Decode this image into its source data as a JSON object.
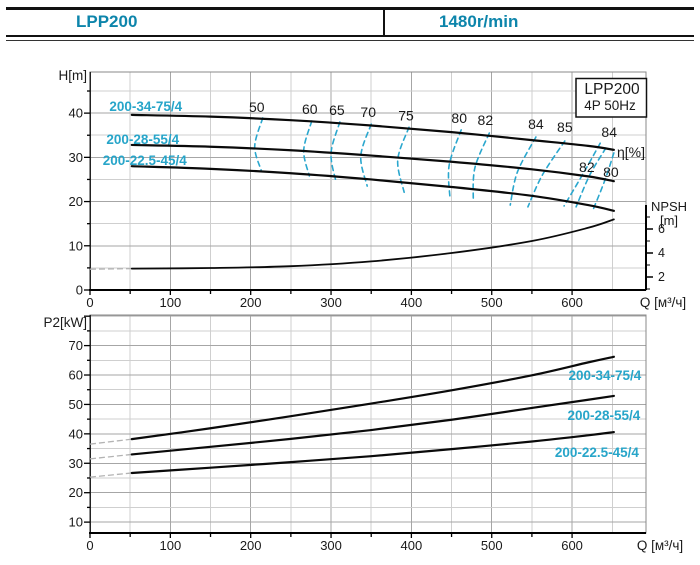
{
  "header": {
    "model": "LPP200",
    "speed": "1480r/min"
  },
  "colors": {
    "header_text": "#0d85ab",
    "series_label": "#27a5c9",
    "efficiency_line": "#2aa7ce",
    "curve": "#0a0a0a",
    "grid_minor": "#cfcfcf",
    "grid_major": "#a6a6a6",
    "border": "#888888",
    "axis": "#000000",
    "lead_in": "#b3b3b3",
    "tick_text": "#1a1a1a"
  },
  "chart_data": [
    {
      "id": "head-flow-chart",
      "type": "line",
      "title": "LPP200",
      "subtitle": "4P  50Hz",
      "xlabel": "Q [м³/ч]",
      "ylabel": "H[m]",
      "xlim": [
        0,
        692
      ],
      "ylim": [
        0,
        49.3
      ],
      "x_ticks": [
        0,
        100,
        200,
        300,
        400,
        500,
        600
      ],
      "y_ticks": [
        0,
        10,
        20,
        30,
        40
      ],
      "x_minor_step": 50,
      "y_minor_step": 5,
      "grid": true,
      "series": [
        {
          "name": "200-34-75/4",
          "points": [
            [
              52,
              39.6
            ],
            [
              150,
              39.2
            ],
            [
              250,
              38.4
            ],
            [
              350,
              37.2
            ],
            [
              450,
              35.7
            ],
            [
              550,
              33.9
            ],
            [
              620,
              32.6
            ],
            [
              652,
              31.7
            ]
          ],
          "label_offset": [
            14,
            -9
          ]
        },
        {
          "name": "200-28-55/4",
          "points": [
            [
              52,
              32.8
            ],
            [
              150,
              32.4
            ],
            [
              250,
              31.6
            ],
            [
              350,
              30.4
            ],
            [
              450,
              29.0
            ],
            [
              550,
              27.3
            ],
            [
              620,
              25.7
            ],
            [
              652,
              24.6
            ]
          ],
          "label_offset": [
            11,
            -6
          ]
        },
        {
          "name": "200-22.5-45/4",
          "points": [
            [
              52,
              28.0
            ],
            [
              150,
              27.4
            ],
            [
              250,
              26.4
            ],
            [
              350,
              25.0
            ],
            [
              450,
              23.3
            ],
            [
              550,
              21.3
            ],
            [
              620,
              19.2
            ],
            [
              652,
              17.9
            ]
          ],
          "label_offset": [
            13,
            -6
          ]
        }
      ],
      "npsh": {
        "label": "NPSH",
        "unit": "[m]",
        "ticks": [
          2,
          4,
          6
        ],
        "minor_ticks": [
          1,
          3,
          5,
          7
        ],
        "points": [
          [
            0,
            2.65
          ],
          [
            52,
            2.7
          ],
          [
            150,
            2.75
          ],
          [
            250,
            2.9
          ],
          [
            350,
            3.3
          ],
          [
            450,
            4.0
          ],
          [
            550,
            5.0
          ],
          [
            620,
            6.1
          ],
          [
            652,
            6.8
          ]
        ]
      },
      "efficiency": {
        "axis_label": "η[%]",
        "lines": [
          {
            "label": "50",
            "points": [
              [
                215,
                38.9
              ],
              [
                205,
                32.5
              ],
              [
                213,
                27.1
              ]
            ],
            "label_offset": [
              -6,
              -11
            ]
          },
          {
            "label": "60",
            "points": [
              [
                276,
                38.2
              ],
              [
                266,
                31.6
              ],
              [
                273,
                25.8
              ]
            ],
            "label_offset": [
              -2,
              -12
            ]
          },
          {
            "label": "65",
            "points": [
              [
                311,
                38.0
              ],
              [
                300,
                31.0
              ],
              [
                306,
                24.6
              ]
            ],
            "label_offset": [
              -3,
              -12
            ]
          },
          {
            "label": "70",
            "points": [
              [
                350,
                37.5
              ],
              [
                337,
                30.3
              ],
              [
                345,
                23.5
              ]
            ],
            "label_offset": [
              -3,
              -12
            ]
          },
          {
            "label": "75",
            "points": [
              [
                397,
                36.8
              ],
              [
                383,
                29.4
              ],
              [
                391,
                22.1
              ]
            ],
            "label_offset": [
              -3,
              -12
            ]
          },
          {
            "label": "80",
            "points": [
              [
                462,
                36.2
              ],
              [
                447,
                28.2
              ],
              [
                448,
                20.8
              ]
            ],
            "label_offset": [
              -2,
              -12
            ]
          },
          {
            "label": "82",
            "points": [
              [
                497,
                35.5
              ],
              [
                479,
                27.6
              ],
              [
                477,
                20.1
              ]
            ],
            "label_offset": [
              -4,
              -13
            ]
          },
          {
            "label": "84",
            "points": [
              [
                555,
                34.6
              ],
              [
                532,
                26.7
              ],
              [
                523,
                19.2
              ]
            ],
            "label_offset": [
              0,
              -13
            ]
          },
          {
            "label": "85",
            "points": [
              [
                591,
                33.7
              ],
              [
                563,
                26.0
              ],
              [
                545,
                18.8
              ]
            ],
            "label_offset": [
              0,
              -14
            ]
          },
          {
            "label": "84",
            "points": [
              [
                635,
                33.2
              ],
              [
                615,
                26.7
              ],
              [
                590,
                19.0
              ]
            ],
            "label_offset": [
              9,
              -11
            ]
          },
          {
            "label": "82",
            "points": [
              [
                642,
                32.1
              ],
              [
                622,
                26.0
              ],
              [
                605,
                18.8
              ]
            ],
            "label_offset": [
              -19,
              19
            ]
          },
          {
            "label": "80",
            "points": [
              [
                652,
                31.0
              ],
              [
                641,
                24.9
              ],
              [
                626,
                18.1
              ]
            ],
            "label_offset": [
              -3,
              19
            ]
          }
        ]
      }
    },
    {
      "id": "power-chart",
      "type": "line",
      "xlabel": "Q [м³/ч]",
      "ylabel": "P2[kW]",
      "xlim": [
        0,
        692
      ],
      "ylim": [
        6.3,
        80.4
      ],
      "x_ticks": [
        0,
        100,
        200,
        300,
        400,
        500,
        600
      ],
      "y_ticks": [
        10,
        20,
        30,
        40,
        50,
        60,
        70
      ],
      "x_minor_step": 50,
      "y_minor_step": 5,
      "grid": true,
      "series": [
        {
          "name": "200-34-75/4",
          "lead": true,
          "points": [
            [
              0,
              36.5
            ],
            [
              52,
              38.2
            ],
            [
              150,
              41.9
            ],
            [
              250,
              46.0
            ],
            [
              350,
              50.3
            ],
            [
              450,
              54.8
            ],
            [
              550,
              59.9
            ],
            [
              620,
              64.3
            ],
            [
              652,
              66.2
            ]
          ],
          "label_offset": [
            -9,
            18
          ]
        },
        {
          "name": "200-28-55/4",
          "lead": true,
          "points": [
            [
              0,
              31.5
            ],
            [
              52,
              33.0
            ],
            [
              150,
              35.6
            ],
            [
              250,
              38.3
            ],
            [
              350,
              41.3
            ],
            [
              450,
              44.8
            ],
            [
              550,
              48.8
            ],
            [
              620,
              51.6
            ],
            [
              652,
              52.9
            ]
          ],
          "label_offset": [
            -10,
            19
          ]
        },
        {
          "name": "200-22.5-45/4",
          "lead": true,
          "points": [
            [
              0,
              25.3
            ],
            [
              52,
              26.7
            ],
            [
              150,
              28.5
            ],
            [
              250,
              30.4
            ],
            [
              350,
              32.4
            ],
            [
              450,
              34.8
            ],
            [
              550,
              37.4
            ],
            [
              620,
              39.5
            ],
            [
              652,
              40.6
            ]
          ],
          "label_offset": [
            -17,
            20
          ]
        }
      ]
    }
  ]
}
